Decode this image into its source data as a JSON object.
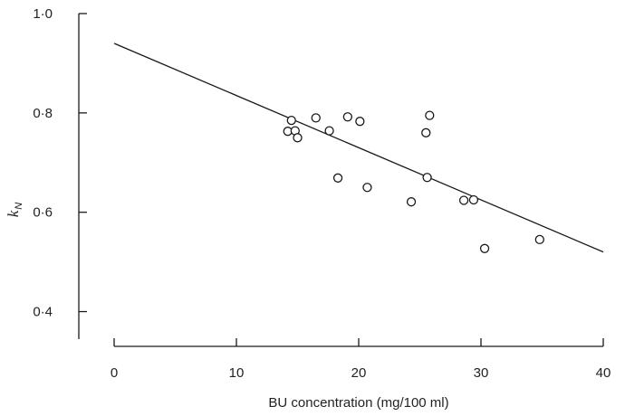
{
  "chart_data": {
    "type": "scatter",
    "title": "",
    "xlabel": "BU concentration (mg/100 ml)",
    "ylabel": {
      "main": "k",
      "subscript": "N"
    },
    "xlim": [
      0,
      40
    ],
    "ylim": [
      0.33,
      1.0
    ],
    "x_ticks": [
      {
        "value": 0,
        "label": "0"
      },
      {
        "value": 10,
        "label": "10"
      },
      {
        "value": 20,
        "label": "20"
      },
      {
        "value": 30,
        "label": "30"
      },
      {
        "value": 40,
        "label": "40"
      }
    ],
    "y_ticks": [
      {
        "value": 0.4,
        "label": "0·4"
      },
      {
        "value": 0.6,
        "label": "0·6"
      },
      {
        "value": 0.8,
        "label": "0·8"
      },
      {
        "value": 1.0,
        "label": "1·0"
      }
    ],
    "grid": false,
    "points": [
      {
        "x": 14.2,
        "y": 0.763
      },
      {
        "x": 14.5,
        "y": 0.785
      },
      {
        "x": 14.8,
        "y": 0.764
      },
      {
        "x": 15.0,
        "y": 0.75
      },
      {
        "x": 16.5,
        "y": 0.79
      },
      {
        "x": 17.6,
        "y": 0.764
      },
      {
        "x": 18.3,
        "y": 0.669
      },
      {
        "x": 19.1,
        "y": 0.792
      },
      {
        "x": 20.1,
        "y": 0.783
      },
      {
        "x": 20.7,
        "y": 0.65
      },
      {
        "x": 24.3,
        "y": 0.621
      },
      {
        "x": 25.5,
        "y": 0.76
      },
      {
        "x": 25.6,
        "y": 0.67
      },
      {
        "x": 25.8,
        "y": 0.795
      },
      {
        "x": 28.6,
        "y": 0.624
      },
      {
        "x": 29.4,
        "y": 0.625
      },
      {
        "x": 30.3,
        "y": 0.527
      },
      {
        "x": 34.8,
        "y": 0.545
      }
    ],
    "regression_line": {
      "x": [
        0,
        40
      ],
      "y": [
        0.94,
        0.52
      ]
    },
    "colors": {
      "ink": "#1a1a1a",
      "background": "#ffffff"
    }
  }
}
